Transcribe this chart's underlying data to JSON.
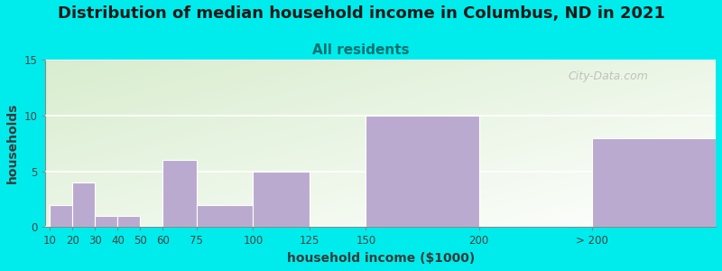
{
  "title": "Distribution of median household income in Columbus, ND in 2021",
  "subtitle": "All residents",
  "xlabel": "household income ($1000)",
  "ylabel": "households",
  "background_color": "#00ECEC",
  "plot_bg_top_left": "#d8edce",
  "plot_bg_bottom_right": "#ffffff",
  "bar_color": "#bbaacf",
  "watermark": "City-Data.com",
  "yticks": [
    0,
    5,
    10,
    15
  ],
  "ylim": [
    0,
    15
  ],
  "tick_positions": [
    10,
    20,
    30,
    40,
    50,
    60,
    75,
    100,
    125,
    150,
    200,
    250,
    305
  ],
  "tick_labels": [
    "10",
    "20",
    "30",
    "40",
    "50",
    "60",
    "75",
    "100",
    "125",
    "150",
    "200",
    "> 200"
  ],
  "values": [
    2,
    4,
    1,
    1,
    0,
    6,
    2,
    5,
    0,
    10,
    0,
    8
  ],
  "title_fontsize": 13,
  "subtitle_fontsize": 11,
  "axis_label_fontsize": 10
}
